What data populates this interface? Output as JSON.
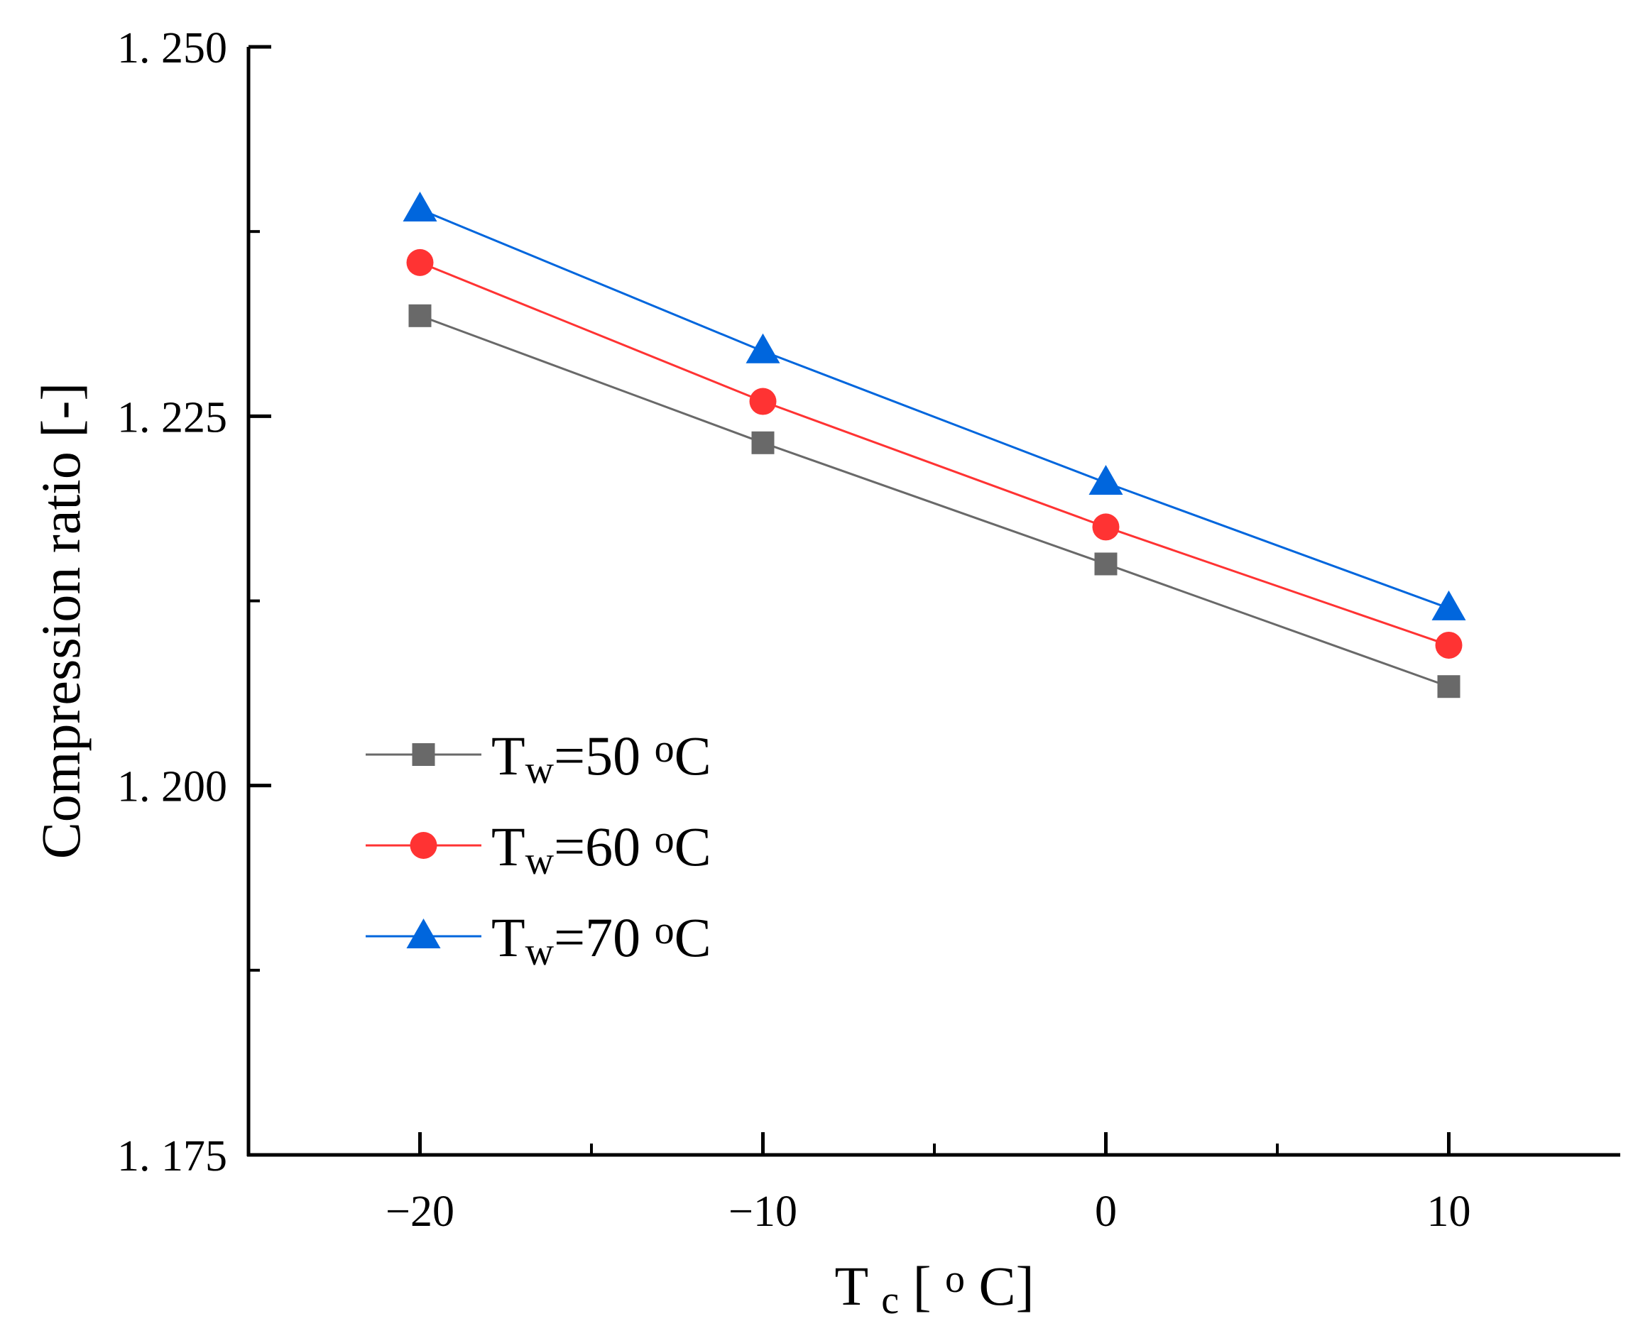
{
  "chart_data": {
    "type": "line",
    "title": "",
    "x": [
      -20,
      -10,
      0,
      10
    ],
    "series": [
      {
        "name": "Tw=50 oC",
        "symbol": "T",
        "subscript": "w",
        "value_text": "=50 ",
        "unit_sup": "o",
        "unit": "C",
        "marker": "square",
        "color": "#696969",
        "values": [
          1.2318,
          1.2232,
          1.215,
          1.2067
        ]
      },
      {
        "name": "Tw=60 oC",
        "symbol": "T",
        "subscript": "w",
        "value_text": "=60 ",
        "unit_sup": "o",
        "unit": "C",
        "marker": "circle",
        "color": "#FF3333",
        "values": [
          1.2354,
          1.226,
          1.2175,
          1.2095
        ]
      },
      {
        "name": "Tw=70 oC",
        "symbol": "T",
        "subscript": "w",
        "value_text": "=70 ",
        "unit_sup": "o",
        "unit": "C",
        "marker": "triangle",
        "color": "#0066DD",
        "values": [
          1.239,
          1.2294,
          1.2205,
          1.212
        ]
      }
    ],
    "xlabel": {
      "symbol": "T",
      "subscript": "c",
      "pre": " [",
      "sup": "o",
      "post": "C]"
    },
    "ylabel": "Compression ratio [-]",
    "xlim": [
      -25,
      15
    ],
    "ylim": [
      1.175,
      1.25
    ],
    "x_ticks": [
      -20,
      -10,
      0,
      10
    ],
    "x_tick_labels": [
      "−20",
      "−10",
      "0",
      "10"
    ],
    "x_minor_ticks": [
      -15,
      -5,
      5
    ],
    "y_ticks": [
      1.175,
      1.2,
      1.225,
      1.25
    ],
    "y_tick_labels": [
      "1. 175",
      "1. 200",
      "1. 225",
      "1. 250"
    ],
    "y_minor_ticks": [
      1.1875,
      1.2125,
      1.2375
    ],
    "grid": false,
    "legend_position": "bottom-left",
    "axis_color": "#000000"
  }
}
